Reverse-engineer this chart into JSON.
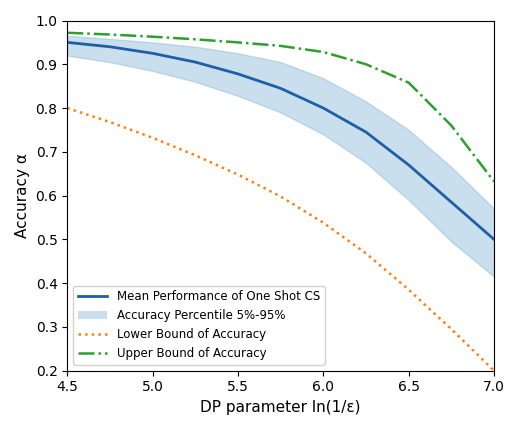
{
  "mean_x": [
    4.5,
    4.75,
    5.0,
    5.25,
    5.5,
    5.75,
    6.0,
    6.25,
    6.5,
    6.75,
    7.0
  ],
  "mean_y": [
    0.95,
    0.94,
    0.925,
    0.905,
    0.878,
    0.845,
    0.8,
    0.745,
    0.67,
    0.585,
    0.5
  ],
  "lower_band_y": [
    0.92,
    0.905,
    0.885,
    0.86,
    0.828,
    0.79,
    0.74,
    0.675,
    0.59,
    0.495,
    0.415
  ],
  "upper_band_y": [
    0.965,
    0.958,
    0.95,
    0.94,
    0.925,
    0.905,
    0.868,
    0.815,
    0.75,
    0.665,
    0.57
  ],
  "lower_bound_x": [
    4.5,
    4.75,
    5.0,
    5.25,
    5.5,
    5.75,
    6.0,
    6.25,
    6.5,
    6.75,
    7.0
  ],
  "lower_bound_y": [
    0.8,
    0.768,
    0.732,
    0.692,
    0.648,
    0.598,
    0.538,
    0.468,
    0.385,
    0.295,
    0.2
  ],
  "upper_bound_x": [
    4.5,
    4.75,
    5.0,
    5.25,
    5.5,
    5.75,
    6.0,
    6.25,
    6.5,
    6.75,
    7.0
  ],
  "upper_bound_y": [
    0.972,
    0.968,
    0.963,
    0.957,
    0.95,
    0.942,
    0.928,
    0.9,
    0.858,
    0.76,
    0.632
  ],
  "xlim": [
    4.5,
    7.0
  ],
  "ylim": [
    0.2,
    1.0
  ],
  "xlabel": "DP parameter ln(1/ε)",
  "ylabel": "Accuracy α",
  "mean_color": "#1f5fa6",
  "band_color": "#7bafd4",
  "band_alpha": 0.4,
  "lower_color": "#ff7f0e",
  "upper_color": "#2ca02c",
  "xticks": [
    4.5,
    5.0,
    5.5,
    6.0,
    6.5,
    7.0
  ],
  "yticks": [
    0.2,
    0.3,
    0.4,
    0.5,
    0.6,
    0.7,
    0.8,
    0.9,
    1.0
  ],
  "legend_labels": [
    "Mean Performance of One Shot CS",
    "Accuracy Percentile 5%-95%",
    "Lower Bound of Accuracy",
    "Upper Bound of Accuracy"
  ]
}
